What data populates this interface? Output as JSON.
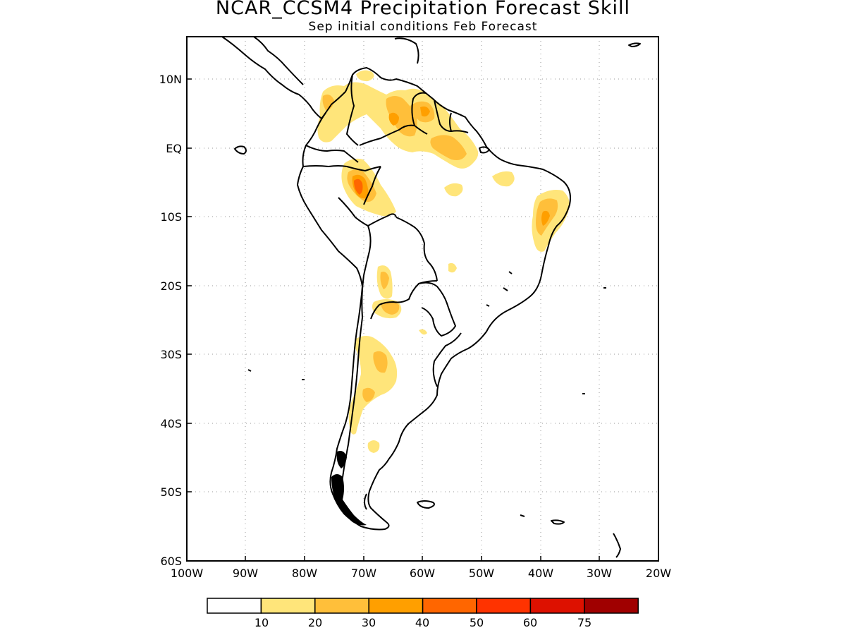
{
  "title": "NCAR_CCSM4 Precipitation Forecast Skill",
  "subtitle": "Sep initial conditions  Feb Forecast",
  "axes": {
    "x_ticks": [
      "100W",
      "90W",
      "80W",
      "70W",
      "60W",
      "50W",
      "40W",
      "30W",
      "20W"
    ],
    "y_ticks": [
      "10N",
      "EQ",
      "10S",
      "20S",
      "30S",
      "40S",
      "50S",
      "60S"
    ]
  },
  "colorbar": {
    "labels": [
      "10",
      "20",
      "30",
      "40",
      "50",
      "60",
      "75"
    ],
    "colors": [
      "#ffffff",
      "#ffe57a",
      "#ffbf3a",
      "#ff9f00",
      "#ff6600",
      "#ff3300",
      "#dd1100",
      "#a00000"
    ]
  },
  "skill_colors": {
    "c10": "#ffe57a",
    "c20": "#ffbf3a",
    "c30": "#ff9f00",
    "c40": "#ff6600"
  }
}
